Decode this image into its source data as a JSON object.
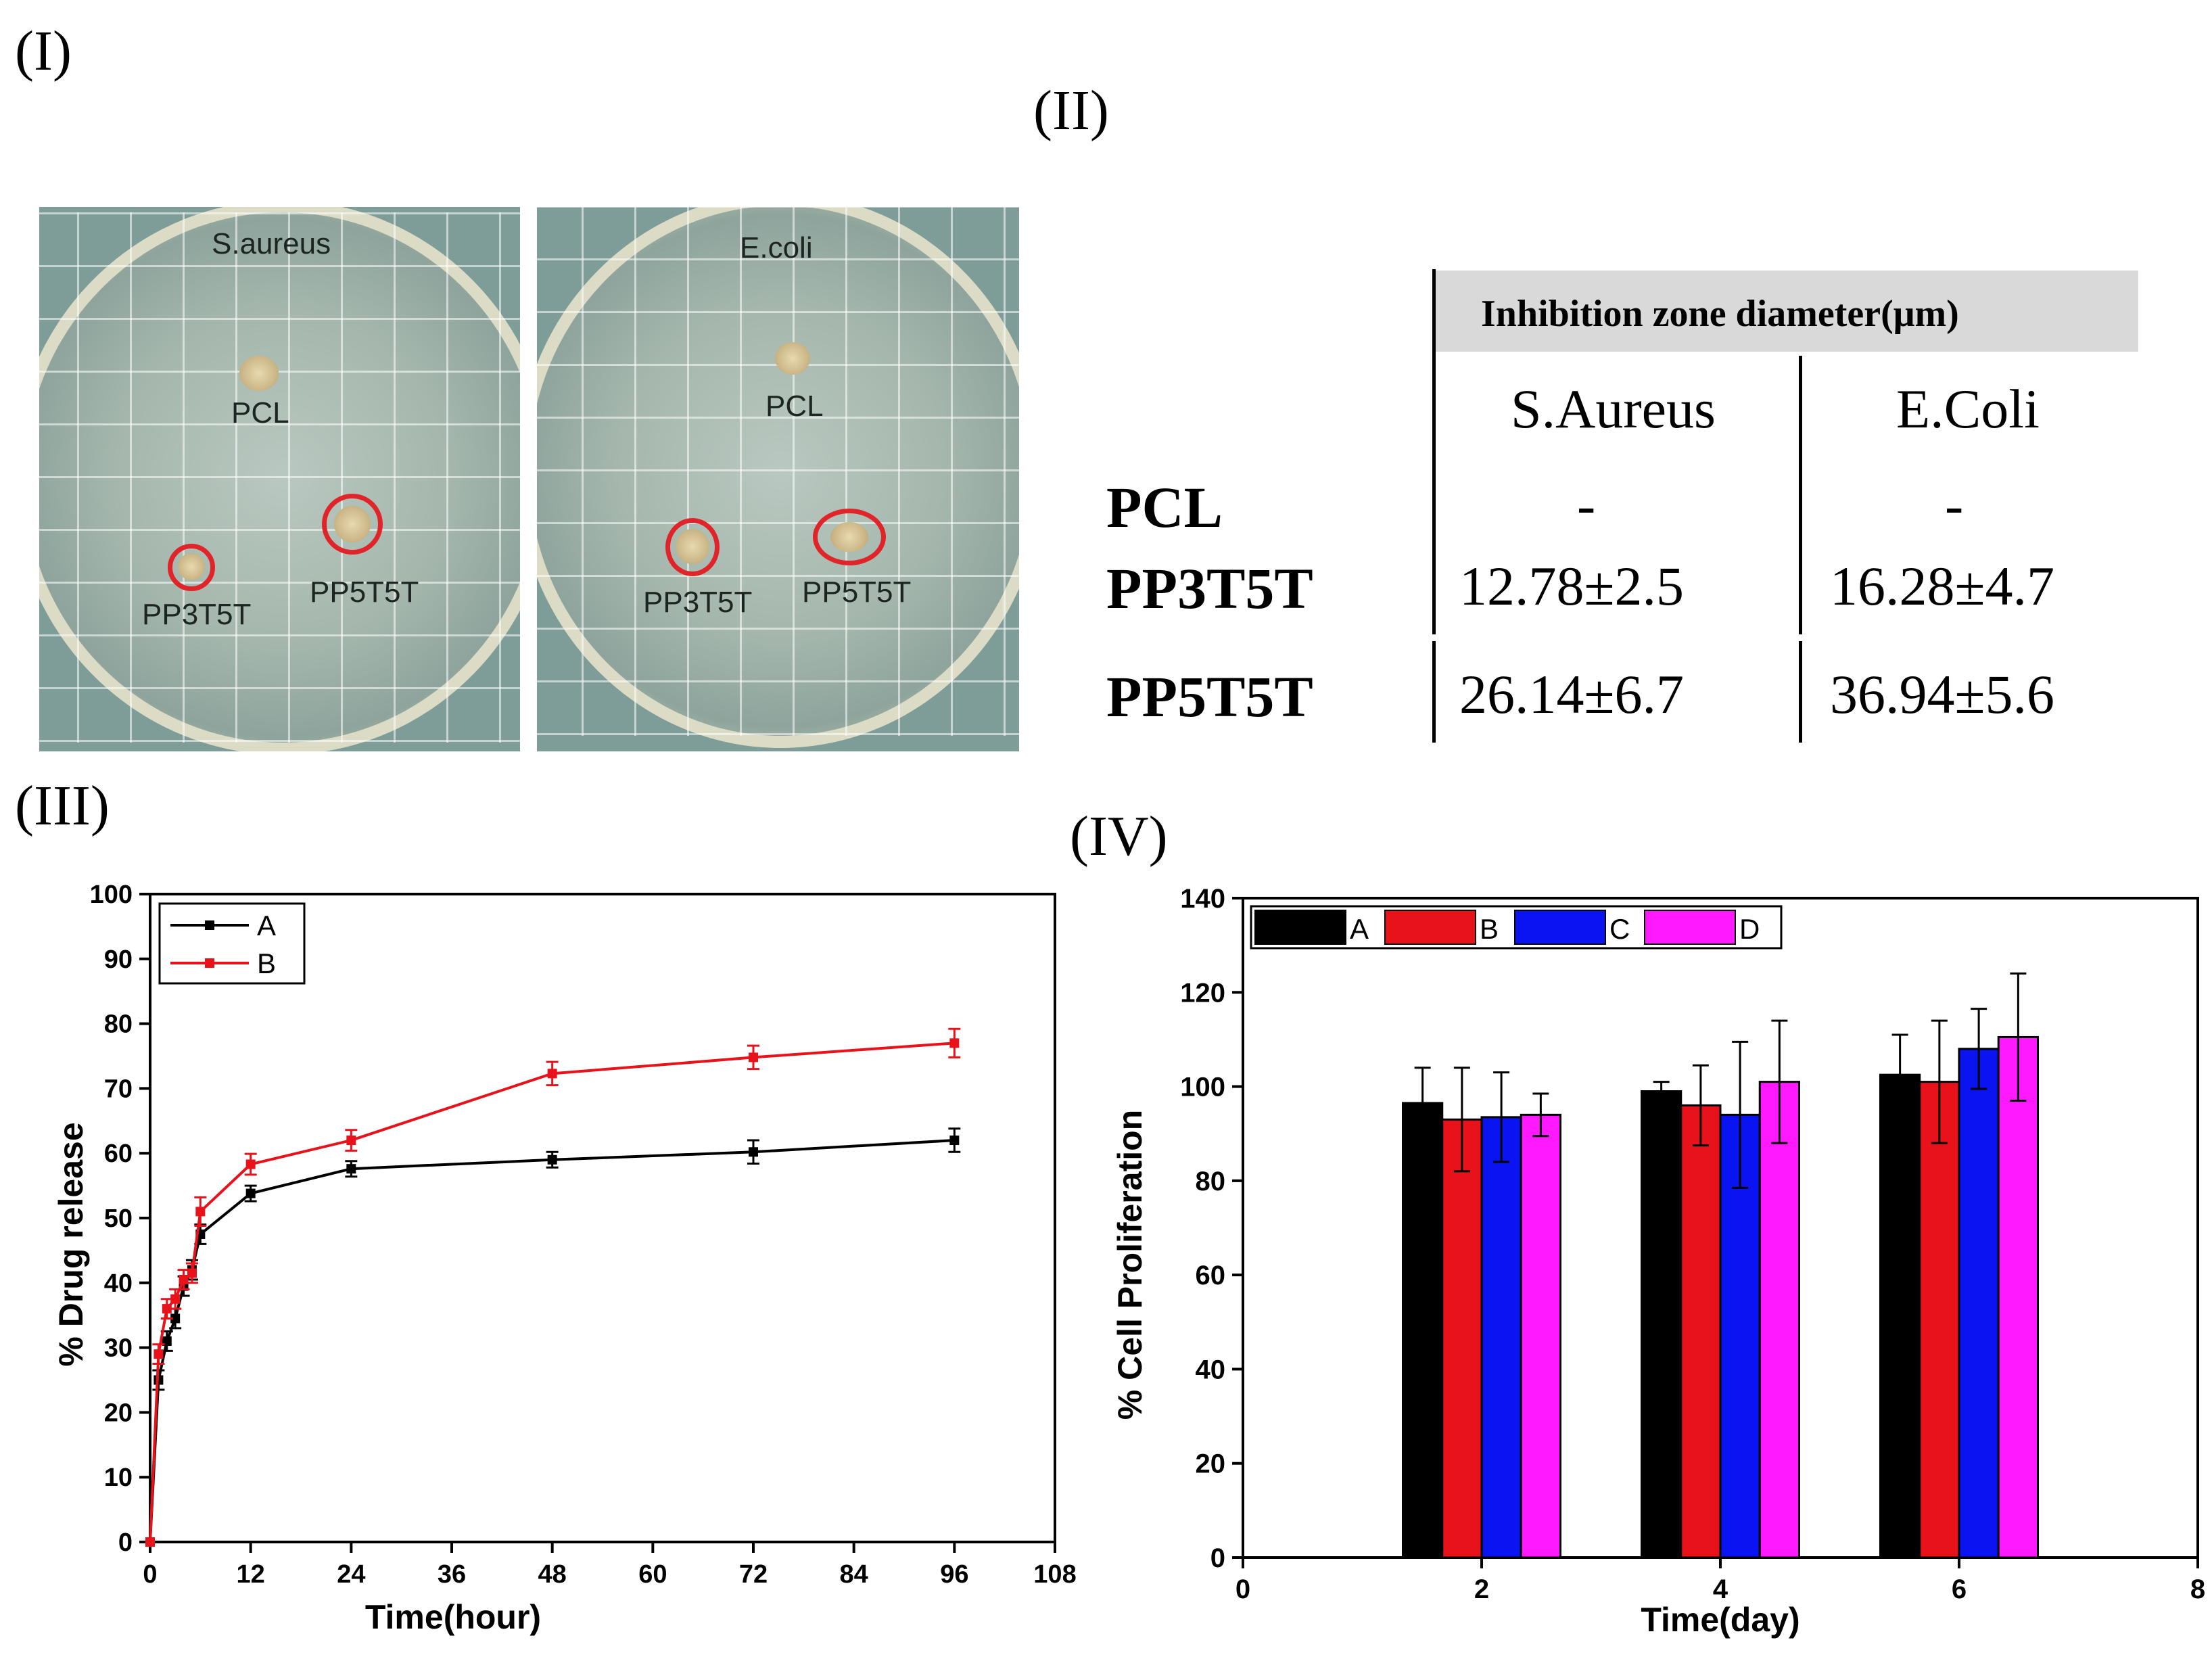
{
  "labels": {
    "panel1": "(I)",
    "panel2": "(II)",
    "panel3": "(III)",
    "panel4": "(IV)"
  },
  "photos": {
    "left": {
      "organism": "S.aureus",
      "pcl": "PCL",
      "s1": "PP3T5T",
      "s2": "PP5T5T"
    },
    "right": {
      "organism": "E.coli",
      "pcl": "PCL",
      "s1": "PP3T5T",
      "s2": "PP5T5T"
    }
  },
  "table": {
    "header": "Inhibition zone diameter(μm)",
    "columns": [
      "S.Aureus",
      "E.Coli"
    ],
    "rows": [
      {
        "name": "PCL",
        "values": [
          "-",
          "-"
        ]
      },
      {
        "name": "PP3T5T",
        "values": [
          "12.78±2.5",
          "16.28±4.7"
        ]
      },
      {
        "name": "PP5T5T",
        "values": [
          "26.14±6.7",
          "36.94±5.6"
        ]
      }
    ]
  },
  "chart_data": [
    {
      "type": "line",
      "xlabel": "Time(hour)",
      "ylabel": "% Drug release",
      "xlim": [
        0,
        108
      ],
      "ylim": [
        0,
        100
      ],
      "xticks": [
        0,
        12,
        24,
        36,
        48,
        60,
        72,
        84,
        96,
        108
      ],
      "yticks": [
        0,
        10,
        20,
        30,
        40,
        50,
        60,
        70,
        80,
        90,
        100
      ],
      "legend": "top-left",
      "colors": {
        "A": "#000000",
        "B": "#e8121b"
      },
      "series": [
        {
          "name": "A",
          "x": [
            0,
            1,
            2,
            3,
            4,
            5,
            6,
            12,
            24,
            48,
            72,
            96
          ],
          "y": [
            0,
            25,
            31,
            34.5,
            39.5,
            42,
            47.5,
            53.8,
            57.6,
            59,
            60.2,
            62
          ],
          "err": [
            0,
            1.5,
            1.5,
            1.5,
            1.5,
            1.5,
            1.5,
            1.2,
            1.2,
            1.2,
            1.8,
            1.8
          ]
        },
        {
          "name": "B",
          "x": [
            0,
            1,
            2,
            3,
            4,
            5,
            6,
            12,
            24,
            48,
            72,
            96
          ],
          "y": [
            0,
            29,
            36,
            37.5,
            40.5,
            41.5,
            51,
            58.3,
            62,
            72.3,
            74.8,
            77
          ],
          "err": [
            0,
            1.5,
            1.5,
            1.5,
            1.5,
            1.5,
            2.2,
            1.6,
            1.6,
            1.8,
            1.8,
            2.2
          ]
        }
      ]
    },
    {
      "type": "bar",
      "xlabel": "Time(day)",
      "ylabel": "% Cell Proliferation",
      "xlim": [
        0,
        8
      ],
      "ylim": [
        0,
        140
      ],
      "xticks": [
        0,
        2,
        4,
        6,
        8
      ],
      "yticks": [
        0,
        20,
        40,
        60,
        80,
        100,
        120,
        140
      ],
      "legend": "top-left",
      "categories": [
        2,
        4,
        6
      ],
      "colors": {
        "A": "#000000",
        "B": "#e8121b",
        "C": "#0a14f0",
        "D": "#ff19ff"
      },
      "series": [
        {
          "name": "A",
          "values": [
            96.5,
            99,
            102.5
          ],
          "err": [
            7.5,
            2,
            8.5
          ]
        },
        {
          "name": "B",
          "values": [
            93,
            96,
            101
          ],
          "err": [
            11,
            8.5,
            13
          ]
        },
        {
          "name": "C",
          "values": [
            93.5,
            94,
            108
          ],
          "err": [
            9.5,
            15.5,
            8.5
          ]
        },
        {
          "name": "D",
          "values": [
            94,
            101,
            110.5
          ],
          "err": [
            4.5,
            13,
            13.5
          ]
        }
      ]
    }
  ]
}
